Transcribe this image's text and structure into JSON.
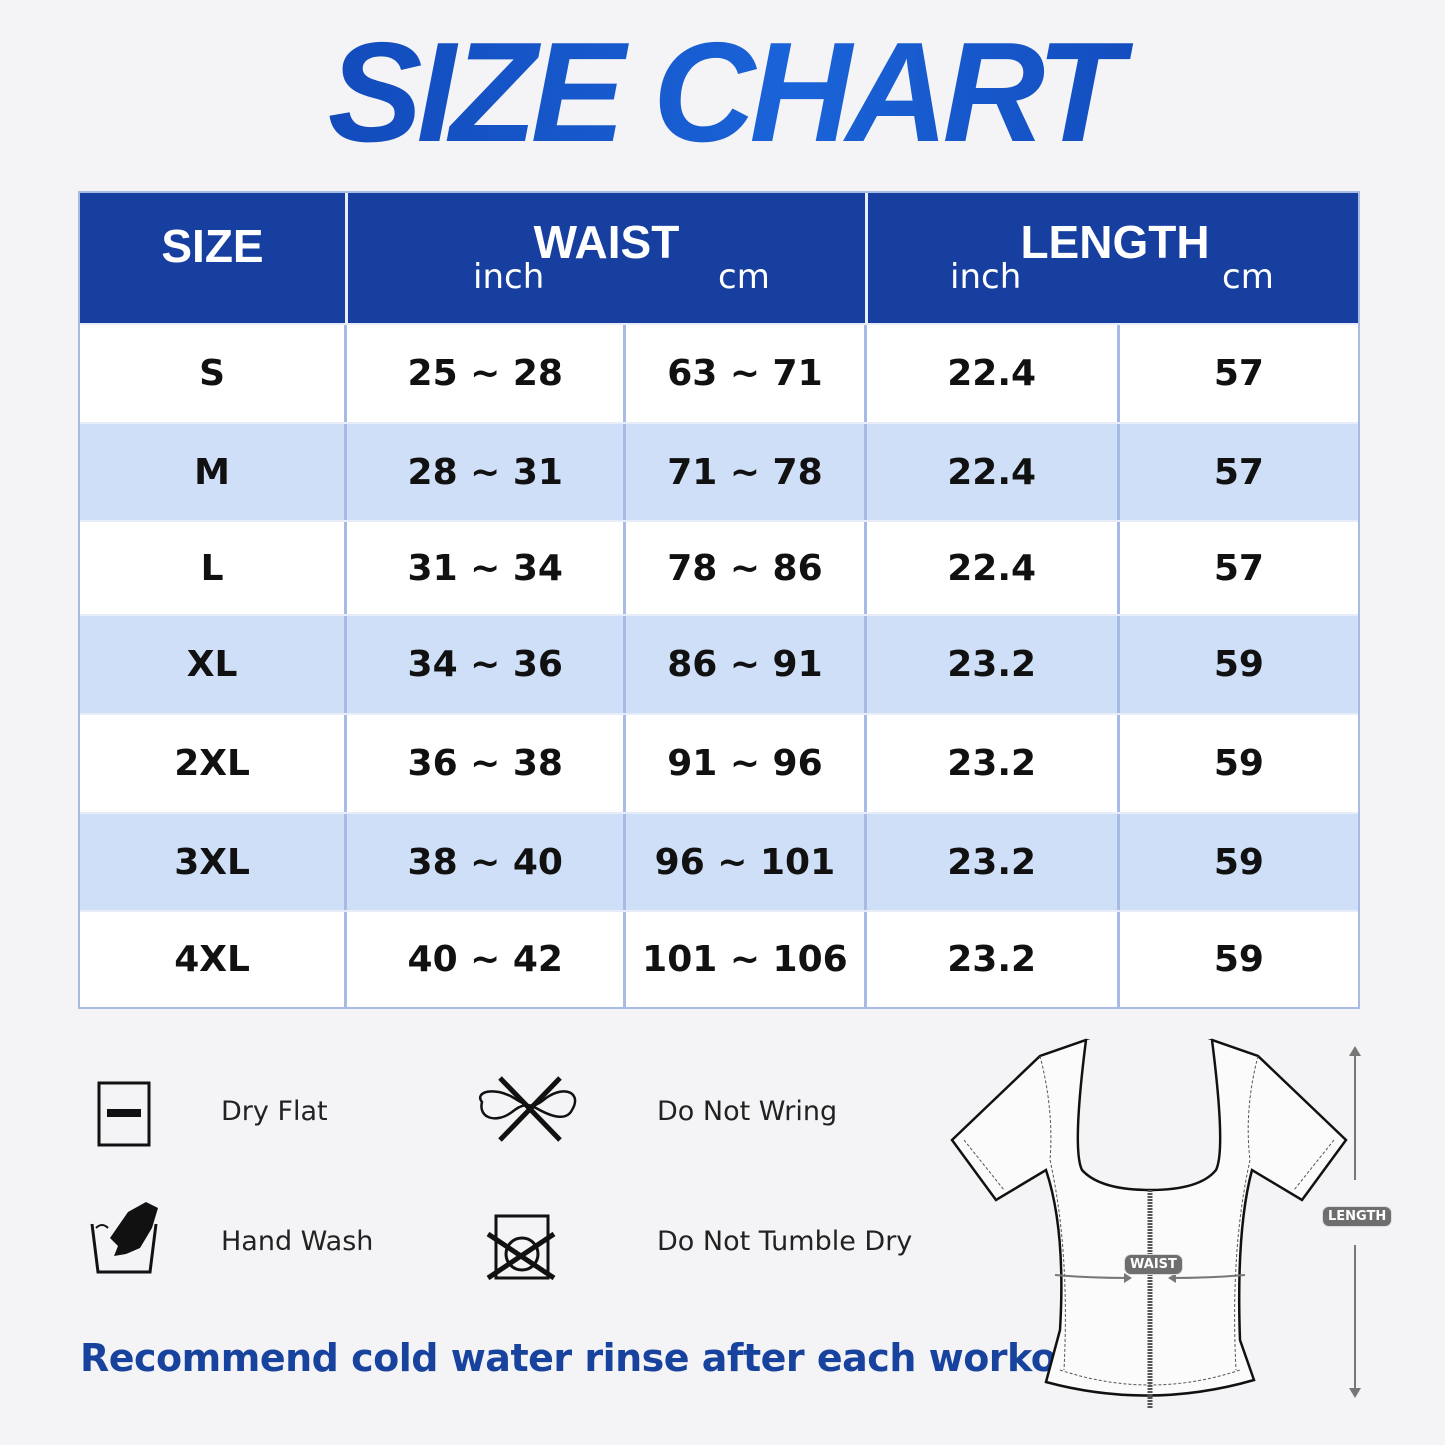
{
  "title": "SIZE CHART",
  "table": {
    "headers": {
      "size": "SIZE",
      "waist": "WAIST",
      "length": "LENGTH",
      "waist_units": [
        "inch",
        "cm"
      ],
      "length_units": [
        "inch",
        "cm"
      ]
    },
    "rows": [
      {
        "size": "S",
        "waist_inch": "25 ~ 28",
        "waist_cm": "63 ~ 71",
        "length_inch": "22.4",
        "length_cm": "57"
      },
      {
        "size": "M",
        "waist_inch": "28 ~ 31",
        "waist_cm": "71 ~ 78",
        "length_inch": "22.4",
        "length_cm": "57"
      },
      {
        "size": "L",
        "waist_inch": "31 ~ 34",
        "waist_cm": "78 ~ 86",
        "length_inch": "22.4",
        "length_cm": "57"
      },
      {
        "size": "XL",
        "waist_inch": "34 ~ 36",
        "waist_cm": "86 ~ 91",
        "length_inch": "23.2",
        "length_cm": "59"
      },
      {
        "size": "2XL",
        "waist_inch": "36 ~ 38",
        "waist_cm": "91 ~ 96",
        "length_inch": "23.2",
        "length_cm": "59"
      },
      {
        "size": "3XL",
        "waist_inch": "38 ~ 40",
        "waist_cm": "96 ~ 101",
        "length_inch": "23.2",
        "length_cm": "59"
      },
      {
        "size": "4XL",
        "waist_inch": "40 ~ 42",
        "waist_cm": "101 ~ 106",
        "length_inch": "23.2",
        "length_cm": "59"
      }
    ]
  },
  "care": [
    {
      "label": "Dry Flat",
      "icon": "dry-flat-icon"
    },
    {
      "label": "Do Not Wring",
      "icon": "do-not-wring-icon"
    },
    {
      "label": "Hand Wash",
      "icon": "hand-wash-icon"
    },
    {
      "label": "Do Not Tumble Dry",
      "icon": "do-not-tumble-dry-icon"
    }
  ],
  "diagram": {
    "waist_label": "WAIST",
    "length_label": "LENGTH"
  },
  "note": "Recommend cold water rinse after each workout.",
  "colors": {
    "header": "#173f9f",
    "alt_row": "#cfdff8",
    "title": "#1547b8",
    "note": "#17439e"
  }
}
